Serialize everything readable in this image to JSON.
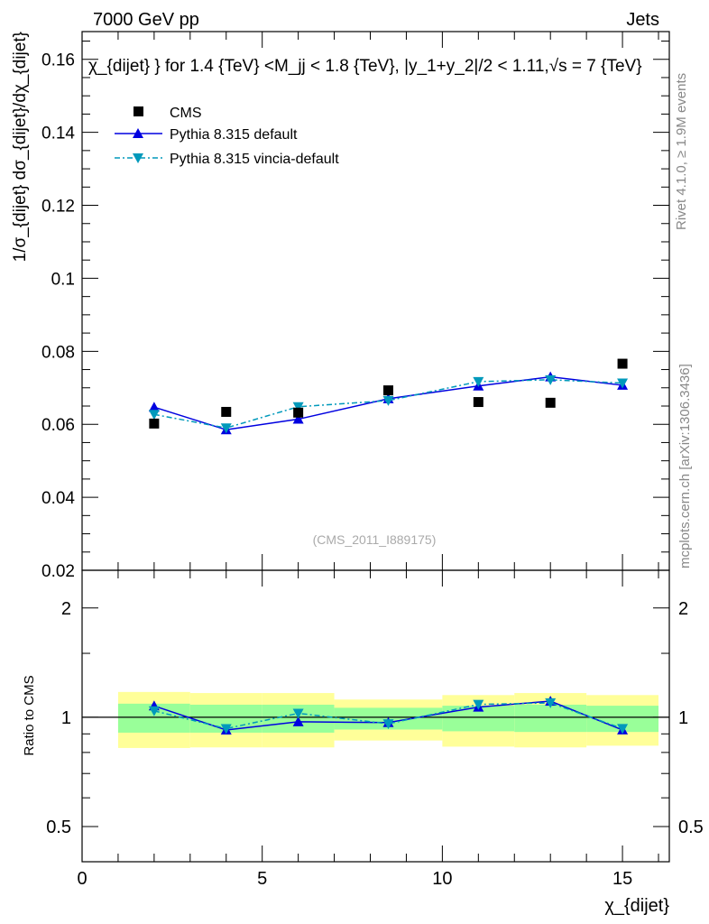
{
  "header": {
    "left": "7000 GeV pp",
    "right": "Jets"
  },
  "side_labels": {
    "rivet": "Rivet 4.1.0, ≥ 1.9M events",
    "mcplots": "mcplots.cern.ch [arXiv:1306.3436]"
  },
  "watermark": "(CMS_2011_I889175)",
  "colors": {
    "cms": "#000000",
    "default": "#0000e0",
    "vincia": "#0099bb",
    "band_inner": "#99ff99",
    "band_outer": "#ffff99"
  },
  "chart_data": [
    {
      "type": "line",
      "title": "χ_{dijet} } for 1.4 {TeV} <M_jj < 1.8 {TeV}, |y_1+y_2|/2 < 1.11,√s = 7 {TeV}",
      "ylabel": "1/σ_{dijet} dσ_{dijet}/dχ_{dijet}",
      "xlim": [
        0,
        16.3
      ],
      "ylim": [
        0.02,
        0.1676
      ],
      "yticks": [
        "0.02",
        "0.04",
        "0.06",
        "0.08",
        "0.1",
        "0.12",
        "0.14",
        "0.16"
      ],
      "x": [
        2,
        4,
        6,
        8.5,
        11,
        13,
        15
      ],
      "legend": "top-left",
      "series": [
        {
          "name": "CMS",
          "marker": "square",
          "values": [
            0.0602,
            0.0634,
            0.0632,
            0.0693,
            0.0661,
            0.0659,
            0.0766
          ]
        },
        {
          "name": "Pythia 8.315 default",
          "marker": "triangle-up",
          "values": [
            0.0647,
            0.0585,
            0.0614,
            0.067,
            0.0705,
            0.073,
            0.0707
          ]
        },
        {
          "name": "Pythia 8.315 vincia-default",
          "marker": "triangle-down",
          "values": [
            0.0627,
            0.059,
            0.0648,
            0.0665,
            0.0717,
            0.0722,
            0.0713
          ]
        }
      ]
    },
    {
      "type": "line",
      "ylabel": "Ratio to CMS",
      "xlabel": "χ_{dijet}",
      "yscale": "log",
      "ylim": [
        0.4,
        2.54
      ],
      "yticks": [
        "0.5",
        "1",
        "2"
      ],
      "xticks": [
        "0",
        "5",
        "10",
        "15"
      ],
      "bins": [
        [
          1,
          3
        ],
        [
          3,
          5
        ],
        [
          5,
          7
        ],
        [
          7,
          10
        ],
        [
          10,
          12
        ],
        [
          12,
          14
        ],
        [
          14,
          16
        ]
      ],
      "band_outer": [
        [
          0.823,
          1.174
        ],
        [
          0.826,
          1.166
        ],
        [
          0.826,
          1.166
        ],
        [
          0.863,
          1.119
        ],
        [
          0.83,
          1.151
        ],
        [
          0.826,
          1.166
        ],
        [
          0.835,
          1.151
        ]
      ],
      "band_inner": [
        [
          0.907,
          1.09
        ],
        [
          0.907,
          1.083
        ],
        [
          0.907,
          1.083
        ],
        [
          0.925,
          1.062
        ],
        [
          0.915,
          1.076
        ],
        [
          0.911,
          1.083
        ],
        [
          0.911,
          1.076
        ]
      ]
    }
  ]
}
